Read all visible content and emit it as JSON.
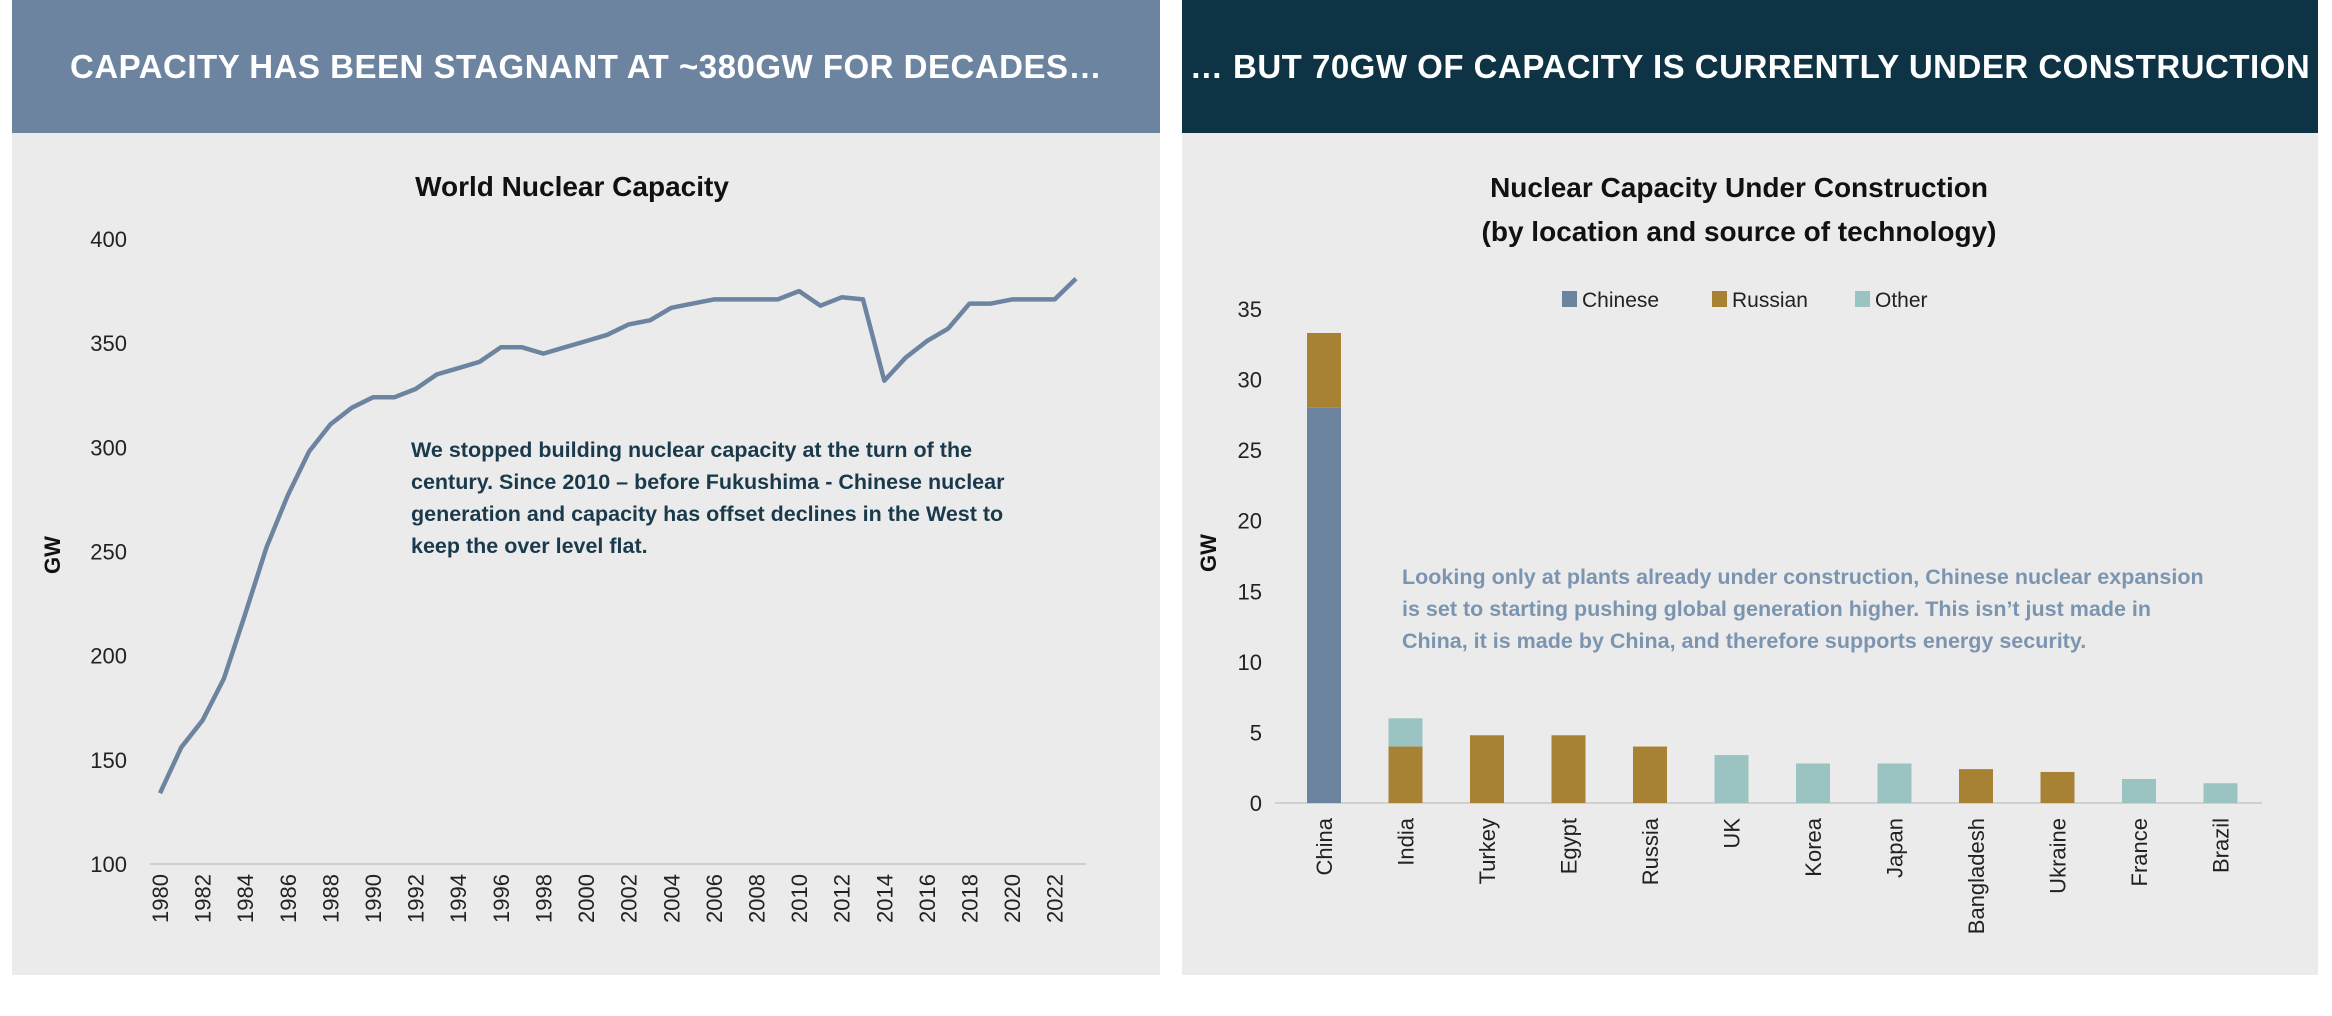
{
  "left": {
    "header": "CAPACITY HAS BEEN STAGNANT AT ~380GW FOR DECADES…",
    "annotation": "We stopped building nuclear capacity at the turn of the century. Since 2010 – before Fukushima -  Chinese nuclear generation and capacity has offset declines in the West to keep the over level flat."
  },
  "right": {
    "header": "… BUT 70GW OF CAPACITY IS CURRENTLY UNDER CONSTRUCTION",
    "annotation": "Looking only at plants already under construction, Chinese nuclear expansion is set to starting pushing global generation higher. This isn’t just made in China, it is made by China, and therefore supports energy security."
  },
  "chart_data": [
    {
      "type": "line",
      "title": "World Nuclear Capacity",
      "xlabel": "",
      "ylabel": "GW",
      "ylim": [
        100,
        400
      ],
      "yticks": [
        100,
        150,
        200,
        250,
        300,
        350,
        400
      ],
      "xtick_labels": [
        "1980",
        "1982",
        "1984",
        "1986",
        "1988",
        "1990",
        "1992",
        "1994",
        "1996",
        "1998",
        "2000",
        "2002",
        "2004",
        "2006",
        "2008",
        "2010",
        "2012",
        "2014",
        "2016",
        "2018",
        "2020",
        "2022"
      ],
      "x": [
        1980,
        1981,
        1982,
        1983,
        1984,
        1985,
        1986,
        1987,
        1988,
        1989,
        1990,
        1991,
        1992,
        1993,
        1994,
        1995,
        1996,
        1997,
        1998,
        1999,
        2000,
        2001,
        2002,
        2003,
        2004,
        2005,
        2006,
        2007,
        2008,
        2009,
        2010,
        2011,
        2012,
        2013,
        2014,
        2015,
        2016,
        2017,
        2018,
        2019,
        2020,
        2021,
        2022,
        2023
      ],
      "series": [
        {
          "name": "World Nuclear Capacity",
          "color": "#6d84a0",
          "values": [
            134,
            156,
            169,
            189,
            220,
            252,
            277,
            298,
            311,
            319,
            324,
            324,
            328,
            335,
            338,
            341,
            348,
            348,
            345,
            348,
            351,
            354,
            359,
            361,
            367,
            369,
            371,
            371,
            371,
            371,
            375,
            368,
            372,
            371,
            332,
            343,
            351,
            357,
            369,
            369,
            371,
            371,
            371,
            381
          ]
        }
      ],
      "grid": false
    },
    {
      "type": "bar",
      "stacked": true,
      "title": "Nuclear Capacity Under Construction",
      "subtitle": "(by location and source of technology)",
      "xlabel": "",
      "ylabel": "GW",
      "ylim": [
        0,
        35
      ],
      "yticks": [
        0,
        5,
        10,
        15,
        20,
        25,
        30,
        35
      ],
      "legend_position": "top-center",
      "categories": [
        "China",
        "India",
        "Turkey",
        "Egypt",
        "Russia",
        "UK",
        "Korea",
        "Japan",
        "Bangladesh",
        "Ukraine",
        "France",
        "Brazil"
      ],
      "series": [
        {
          "name": "Chinese",
          "color": "#6d84a0",
          "values": [
            28,
            0,
            0,
            0,
            0,
            0,
            0,
            0,
            0,
            0,
            0,
            0
          ]
        },
        {
          "name": "Russian",
          "color": "#a88234",
          "values": [
            5.3,
            4,
            4.8,
            4.8,
            4,
            0,
            0,
            0,
            2.4,
            2.2,
            0,
            0
          ]
        },
        {
          "name": "Other",
          "color": "#9bc3c1",
          "values": [
            0,
            2,
            0,
            0,
            0,
            3.4,
            2.8,
            2.8,
            0,
            0,
            1.7,
            1.4
          ]
        }
      ],
      "grid": false
    }
  ]
}
